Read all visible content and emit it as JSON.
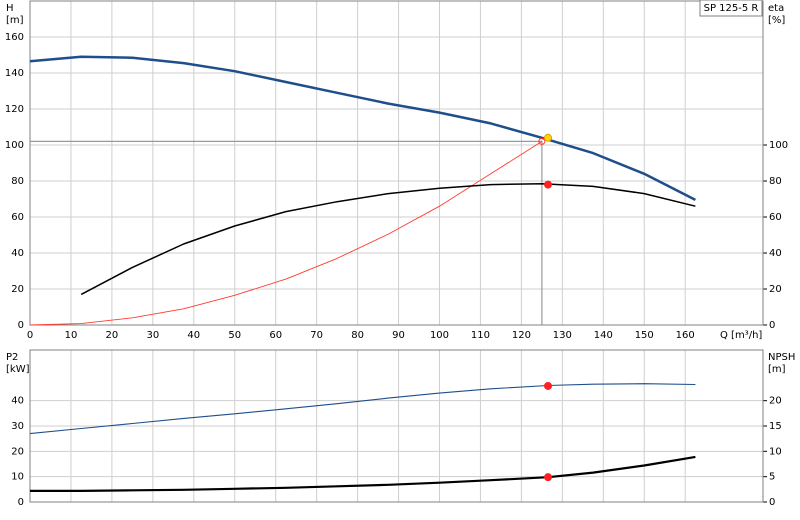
{
  "chart_data": [
    {
      "type": "line",
      "title": "SP 125-5 R",
      "ylabel": "H",
      "yunit": "[m]",
      "y2label": "eta",
      "y2unit": "[%]",
      "xlabel": "Q [m³/h]",
      "xlim": [
        0,
        179
      ],
      "xticks": [
        0,
        10,
        20,
        30,
        40,
        50,
        60,
        70,
        80,
        90,
        100,
        110,
        120,
        130,
        140,
        150,
        160
      ],
      "xtick_labels": true,
      "ylim": [
        0,
        180
      ],
      "yticks": [
        0,
        20,
        40,
        60,
        80,
        100,
        120,
        140,
        160
      ],
      "y2lim": [
        0,
        180
      ],
      "y2ticks": [
        0,
        20,
        40,
        60,
        80,
        100
      ],
      "grid": true,
      "series": [
        {
          "color": "#999999",
          "width": 1.2,
          "x": [
            0,
            125,
            125
          ],
          "values": [
            102,
            102,
            0
          ]
        },
        {
          "color": "#ff3b30",
          "width": 0.9,
          "x": [
            0,
            12.5,
            25,
            37.5,
            50,
            62.5,
            75,
            87.5,
            100,
            112.5,
            125
          ],
          "values": [
            0,
            0.8,
            4,
            9,
            16.5,
            25.5,
            37,
            50.5,
            66,
            84,
            102
          ]
        },
        {
          "color": "#000000",
          "width": 1.5,
          "axis": "y2",
          "x": [
            12.5,
            25,
            37.5,
            50,
            62.5,
            75,
            87.5,
            100,
            112.5,
            125,
            137.5,
            150,
            162.5
          ],
          "values": [
            17,
            32,
            45,
            55,
            63,
            68.5,
            73,
            76,
            78,
            78.5,
            77,
            73,
            66
          ]
        },
        {
          "color": "#1f4e8c",
          "width": 2.5,
          "x": [
            0,
            12.5,
            25,
            37.5,
            50,
            62.5,
            75,
            87.5,
            100,
            112.5,
            125,
            137.5,
            150,
            162.5
          ],
          "values": [
            146.5,
            149,
            148.5,
            145.5,
            141,
            135,
            129,
            123,
            118,
            112,
            104,
            95.5,
            84,
            69.5
          ]
        },
        {
          "color": "#ff3b30",
          "marker": true,
          "hollow": true,
          "x": [
            125
          ],
          "values": [
            102
          ]
        },
        {
          "color": "#ff2020",
          "marker": true,
          "axis": "y2",
          "x": [
            126.5
          ],
          "values": [
            78
          ]
        },
        {
          "color": "#ffd700",
          "marker": true,
          "x": [
            126.5
          ],
          "values": [
            104
          ]
        }
      ]
    },
    {
      "type": "line",
      "ylabel": "P2",
      "yunit": "[kW]",
      "y2label": "NPSH",
      "y2unit": "[m]",
      "xlim": [
        0,
        179
      ],
      "xticks": [
        0,
        10,
        20,
        30,
        40,
        50,
        60,
        70,
        80,
        90,
        100,
        110,
        120,
        130,
        140,
        150,
        160
      ],
      "xtick_labels": false,
      "ylim": [
        0,
        60
      ],
      "yticks": [
        0,
        10,
        20,
        30,
        40
      ],
      "y2lim": [
        0,
        30
      ],
      "y2ticks": [
        0,
        5,
        10,
        15,
        20
      ],
      "grid": true,
      "series": [
        {
          "color": "#1f4e8c",
          "width": 1.1,
          "x": [
            0,
            12.5,
            25,
            37.5,
            50,
            62.5,
            75,
            87.5,
            100,
            112.5,
            126.5,
            137.5,
            150,
            162.5
          ],
          "values": [
            27,
            29,
            31,
            33,
            34.8,
            36.8,
            38.8,
            41,
            43,
            44.7,
            46,
            46.5,
            46.7,
            46.4
          ]
        },
        {
          "color": "#000000",
          "width": 2.2,
          "axis": "y2",
          "x": [
            0,
            12.5,
            25,
            37.5,
            50,
            62.5,
            75,
            87.5,
            100,
            112.5,
            126.5,
            137.5,
            150,
            162.5
          ],
          "values": [
            2.2,
            2.2,
            2.3,
            2.4,
            2.6,
            2.8,
            3.1,
            3.4,
            3.8,
            4.3,
            4.9,
            5.8,
            7.2,
            8.9
          ]
        },
        {
          "color": "#ff2020",
          "marker": true,
          "x": [
            126.5
          ],
          "values": [
            45.8
          ]
        },
        {
          "color": "#ff2020",
          "marker": true,
          "axis": "y2",
          "x": [
            126.5
          ],
          "values": [
            4.9
          ]
        }
      ]
    }
  ]
}
